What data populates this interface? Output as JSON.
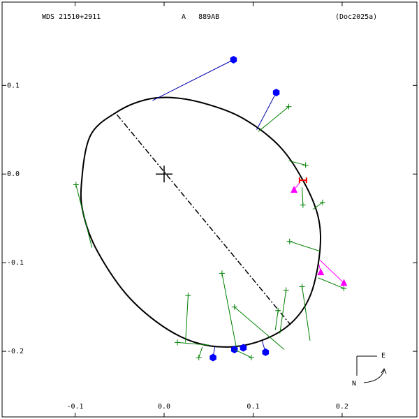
{
  "chart_data": {
    "type": "orbit",
    "title": "WDS 21510+2911",
    "subtitle": "A   889AB",
    "reference": "(Doc2025a)",
    "xlim": [
      -0.182,
      0.284
    ],
    "ylim": [
      -0.274,
      0.194
    ],
    "xticks": [
      -0.1,
      {
        "value": 0,
        "label": "0.0"
      },
      0.1,
      0.2
    ],
    "yticks": [
      0.1,
      {
        "value": 0,
        "label": "0.0"
      },
      -0.1,
      -0.2
    ],
    "compass": {
      "north": "N",
      "east": "E"
    },
    "primary": {
      "x": 0,
      "y": 0
    },
    "orbit": {
      "color": "#000000",
      "x": [
        -0.093,
        -0.083,
        -0.053,
        -0.02,
        0.012,
        0.051,
        0.09,
        0.13,
        0.157,
        0.173,
        0.175,
        0.165,
        0.145,
        0.114,
        0.075,
        0.035,
        -0.004,
        -0.043,
        -0.075,
        -0.09
      ],
      "y": [
        -0.013,
        0.043,
        0.07,
        0.084,
        0.086,
        0.078,
        0.062,
        0.031,
        -0.009,
        -0.048,
        -0.087,
        -0.135,
        -0.166,
        -0.186,
        -0.195,
        -0.19,
        -0.17,
        -0.135,
        -0.087,
        -0.048
      ]
    },
    "node_line": {
      "x": [
        -0.053,
        0.142
      ],
      "y": [
        0.067,
        -0.17
      ]
    },
    "observations": [
      {
        "marker": "hexagon",
        "color": "#0000ff",
        "residual_color": "#0000aa",
        "x": [
          0.078,
          0.126,
          0.055,
          0.079,
          0.089,
          0.114
        ],
        "y": [
          0.129,
          0.092,
          -0.207,
          -0.198,
          -0.196,
          -0.201
        ],
        "orbit_x": [
          -0.013,
          0.104,
          0.057,
          0.078,
          0.087,
          0.11
        ],
        "orbit_y": [
          0.083,
          0.05,
          -0.195,
          -0.195,
          -0.196,
          -0.188
        ]
      },
      {
        "marker": "plus",
        "color": "#008000",
        "residual_color": "#008000",
        "x": [
          0.14,
          0.159,
          0.156,
          0.178,
          -0.099,
          0.141,
          0.202,
          0.155,
          0.137,
          0.128,
          0.079,
          0.065,
          0.027,
          0.015,
          0.039,
          0.098
        ],
        "y": [
          0.076,
          0.01,
          -0.035,
          -0.032,
          -0.012,
          -0.076,
          -0.129,
          -0.127,
          -0.131,
          -0.154,
          -0.15,
          -0.112,
          -0.137,
          -0.19,
          -0.207,
          -0.207
        ],
        "orbit_x": [
          0.106,
          0.14,
          0.155,
          0.167,
          -0.081,
          0.175,
          0.173,
          0.164,
          0.13,
          0.125,
          0.135,
          0.081,
          0.024,
          0.051,
          0.043,
          0.079
        ],
        "orbit_y": [
          0.048,
          0.015,
          -0.015,
          -0.04,
          -0.083,
          -0.087,
          -0.117,
          -0.188,
          -0.18,
          -0.176,
          -0.198,
          -0.195,
          -0.19,
          -0.193,
          -0.195,
          -0.198
        ]
      },
      {
        "marker": "triangle",
        "color": "#ff00ff",
        "residual_color": "#ff00ff",
        "x": [
          0.146,
          0.176,
          0.202
        ],
        "y": [
          -0.018,
          -0.111,
          -0.123
        ],
        "orbit_x": [
          0.152,
          0.174,
          0.175
        ],
        "orbit_y": [
          -0.01,
          -0.102,
          -0.097
        ]
      }
    ],
    "error_bar": {
      "color": "#ff0000",
      "x": 0.156,
      "y": -0.007
    }
  }
}
